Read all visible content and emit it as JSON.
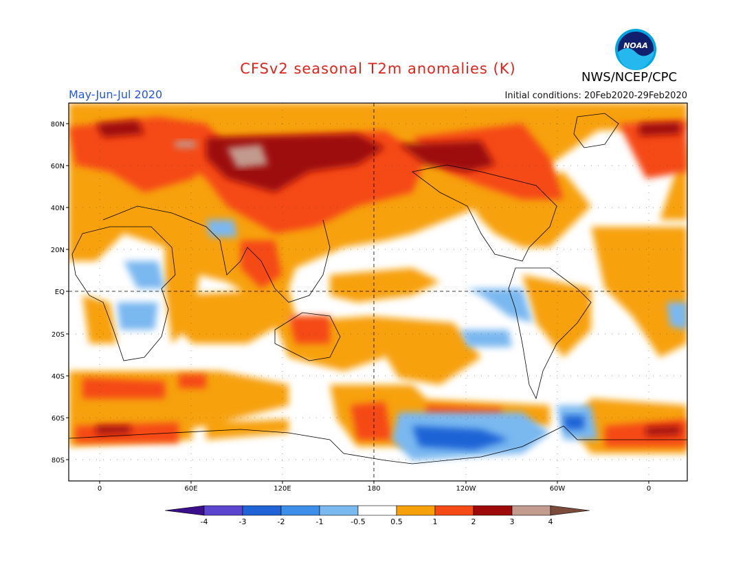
{
  "header": {
    "title": "CFSv2 seasonal T2m anomalies (K)",
    "agency": "NWS/NCEP/CPC",
    "period": "May-Jun-Jul 2020",
    "initial_conditions": "Initial conditions: 20Feb2020-29Feb2020",
    "logo_text": "NOAA"
  },
  "colors": {
    "title": "#e0241b",
    "period": "#2255e6",
    "levels": [
      "#3b0e8c",
      "#5b45cf",
      "#1f63d6",
      "#3d8ee8",
      "#7ab8f0",
      "#ffffff",
      "#f7a10a",
      "#f54a16",
      "#9e0a0a",
      "#c39a8e",
      "#7a4a3a"
    ],
    "ocean_white": "#ffffff"
  },
  "map": {
    "lat_labels": [
      "80N",
      "60N",
      "40N",
      "20N",
      "EQ",
      "20S",
      "40S",
      "60S",
      "80S"
    ],
    "lon_labels": [
      "0",
      "60E",
      "120E",
      "180",
      "120W",
      "60W",
      "0"
    ]
  },
  "colorbar": {
    "labels": [
      "-4",
      "-3",
      "-2",
      "-1",
      "-0.5",
      "0.5",
      "1",
      "2",
      "3",
      "4"
    ]
  }
}
